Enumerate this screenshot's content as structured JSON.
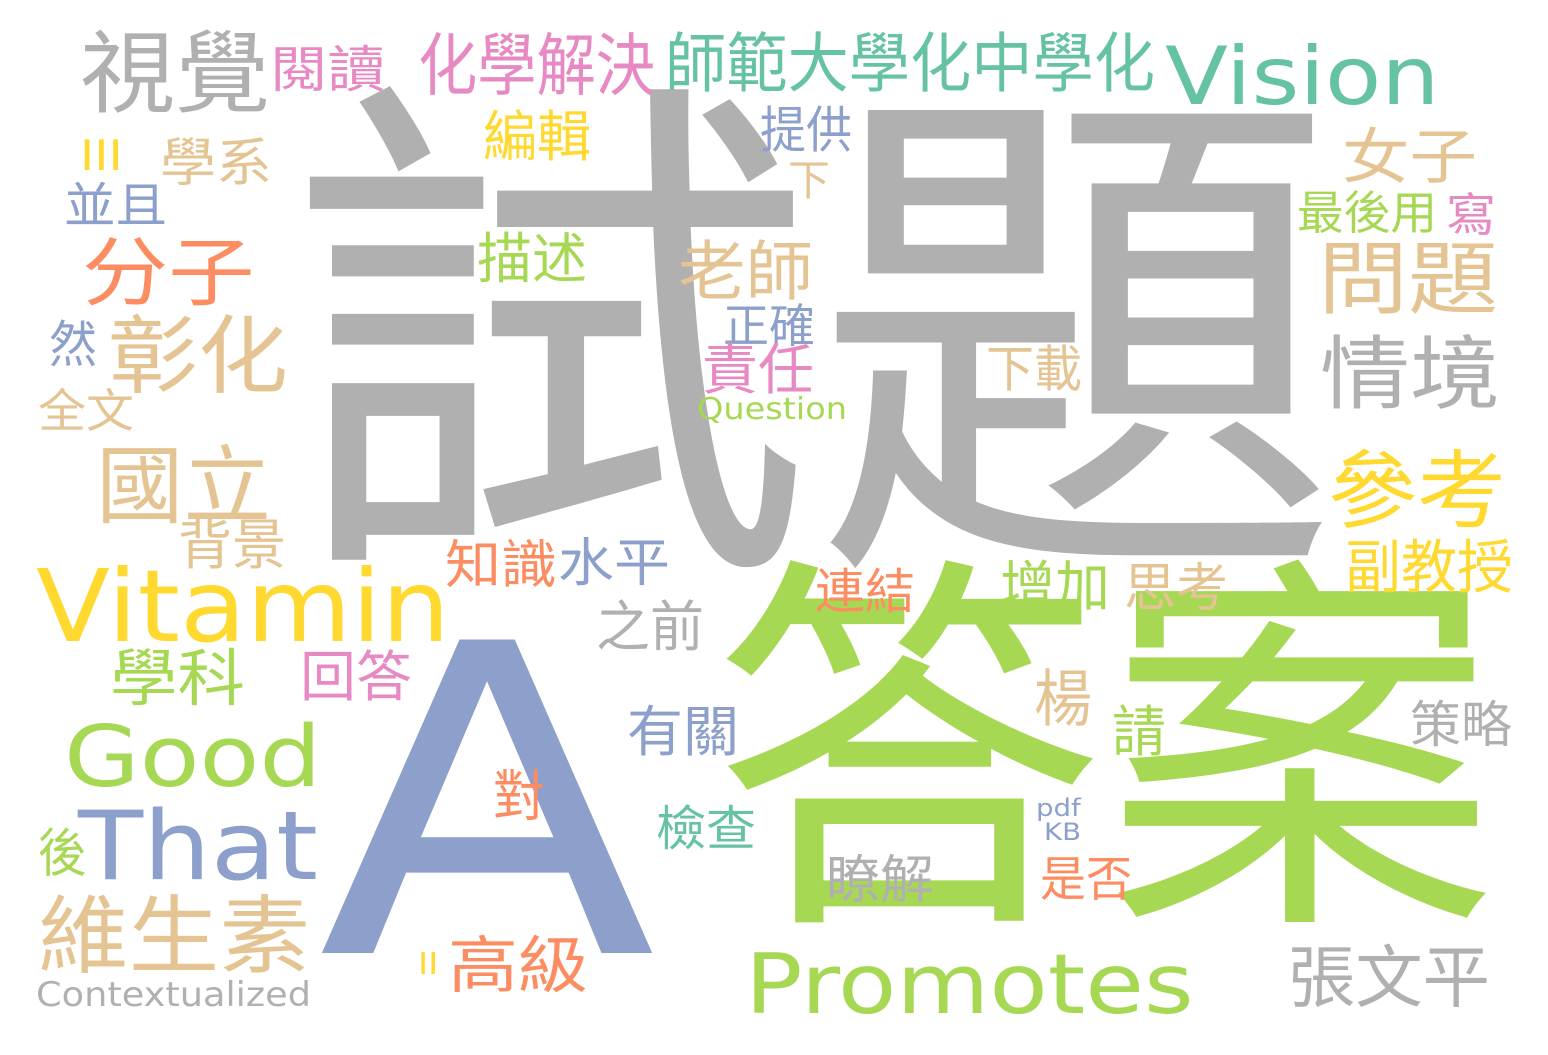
{
  "palette": {
    "gray": "#b0b0b0",
    "green": "#a6d854",
    "blue": "#8da0cb",
    "orange": "#fc8d62",
    "yellow": "#ffd92f",
    "tan": "#e5c494",
    "pink": "#e78ac3",
    "teal": "#66c2a5",
    "bg": "#ffffff"
  },
  "words": {
    "w01": "試題",
    "w02": "答案",
    "w03": "A",
    "w04": "Vitamin",
    "w05": "Vision",
    "w06": "Good",
    "w07": "That",
    "w08": "Promotes",
    "w09": "視覺",
    "w10": "閱讀",
    "w11": "化學解決",
    "w12": "師範大學化中學化",
    "w13": "分子",
    "w14": "彰化",
    "w15": "國立",
    "w16": "維生素",
    "w17": "問題",
    "w18": "情境",
    "w19": "參考",
    "w20": "女子",
    "w21": "老師",
    "w22": "編輯",
    "w23": "描述",
    "w24": "III",
    "w25": "學系",
    "w26": "並且",
    "w27": "然",
    "w28": "全文",
    "w29": "背景",
    "w30": "知識",
    "w31": "水平",
    "w32": "學科",
    "w33": "回答",
    "w34": "之前",
    "w35": "有關",
    "w36": "對",
    "w37": "後",
    "w38": "II",
    "w39": "高級",
    "w40": "Contextualized",
    "w41": "提供",
    "w42": "下",
    "w43": "正確",
    "w44": "責任",
    "w45": "Question",
    "w46": "最後用",
    "w47": "寫",
    "w48": "下載",
    "w49": "副教授",
    "w50": "增加",
    "w51": "思考",
    "w52": "連結",
    "w53": "楊",
    "w54": "請",
    "w55": "策略",
    "w56": "檢查",
    "w57": "pdf",
    "w58": "KB",
    "w59": "是否",
    "w60": "瞭解",
    "w61": "張文平"
  }
}
